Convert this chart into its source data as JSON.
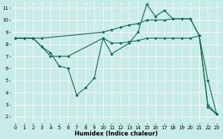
{
  "background_color": "#c8ede8",
  "grid_color": "#ffffff",
  "line_color": "#1a6b5a",
  "xlabel": "Humidex (Indice chaleur)",
  "xlim": [
    -0.5,
    23.5
  ],
  "ylim": [
    1.5,
    11.5
  ],
  "xticks": [
    0,
    1,
    2,
    3,
    4,
    5,
    6,
    7,
    8,
    9,
    10,
    11,
    12,
    13,
    14,
    15,
    16,
    17,
    18,
    19,
    20,
    21,
    22,
    23
  ],
  "yticks": [
    2,
    3,
    4,
    5,
    6,
    7,
    8,
    9,
    10,
    11
  ],
  "lines": [
    {
      "x": [
        0,
        1,
        2,
        3,
        10,
        11,
        12,
        13,
        14,
        15,
        16,
        17,
        18,
        19,
        20,
        21,
        22,
        23
      ],
      "y": [
        8.5,
        8.5,
        8.5,
        8.5,
        9.0,
        9.2,
        9.4,
        9.6,
        9.7,
        10.0,
        10.0,
        10.0,
        10.1,
        10.1,
        10.1,
        8.7,
        5.0,
        2.2
      ]
    },
    {
      "x": [
        0,
        1,
        2,
        3,
        4,
        5,
        6,
        10,
        11,
        12,
        13,
        14,
        15,
        16,
        17,
        18,
        19,
        20,
        21,
        22,
        23
      ],
      "y": [
        8.5,
        8.5,
        8.5,
        7.8,
        7.0,
        7.0,
        7.0,
        8.5,
        8.1,
        8.1,
        8.2,
        8.3,
        8.5,
        8.5,
        8.5,
        8.5,
        8.5,
        8.5,
        8.7,
        3.0,
        2.2
      ]
    },
    {
      "x": [
        0,
        1,
        2,
        3,
        4,
        5,
        6,
        7,
        8,
        9,
        10,
        11,
        13,
        14,
        15,
        16,
        17,
        18,
        19,
        20,
        21,
        22,
        23
      ],
      "y": [
        8.5,
        8.5,
        8.5,
        7.8,
        7.3,
        6.2,
        6.0,
        3.8,
        4.4,
        5.2,
        8.5,
        7.2,
        8.1,
        9.0,
        11.3,
        10.3,
        10.8,
        10.1,
        10.1,
        10.1,
        8.7,
        2.8,
        2.2
      ]
    }
  ]
}
